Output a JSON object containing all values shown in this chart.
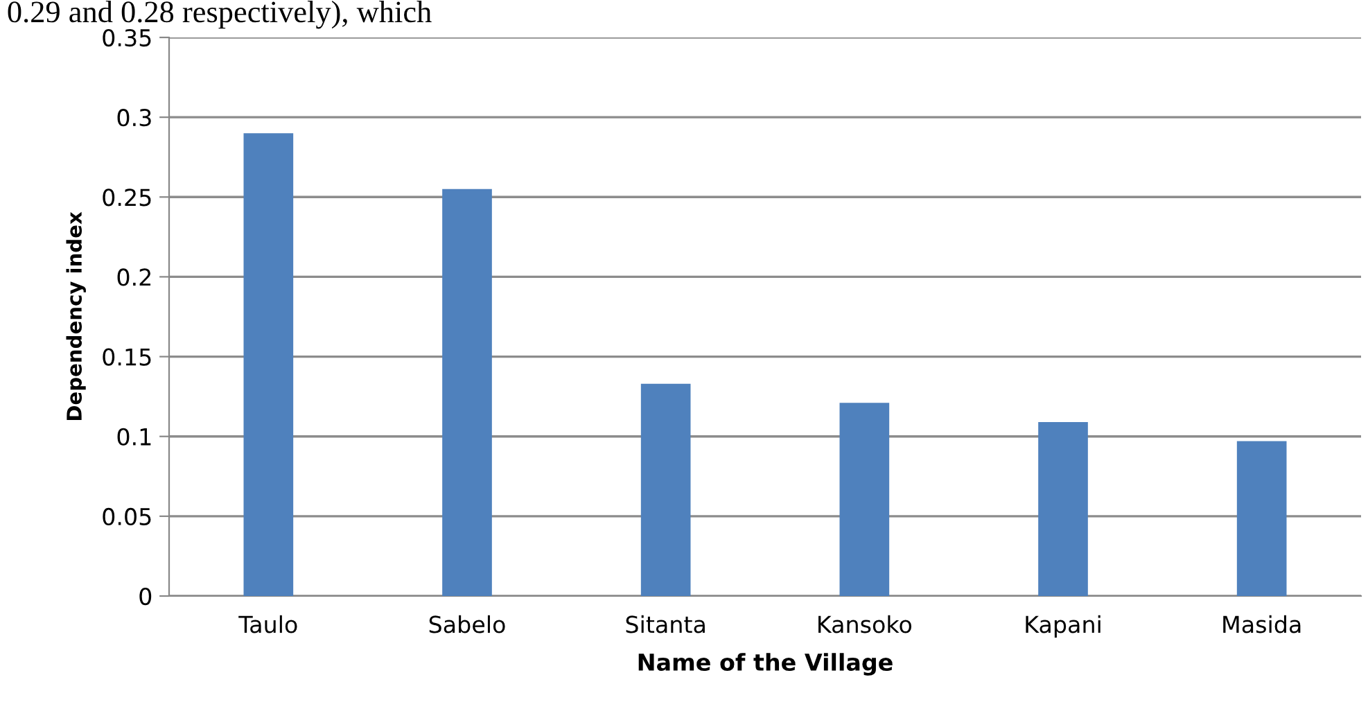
{
  "chart_data": {
    "type": "bar",
    "categories": [
      "Taulo",
      "Sabelo",
      "Sitanta",
      "Kansoko",
      "Kapani",
      "Masida"
    ],
    "values": [
      0.29,
      0.255,
      0.133,
      0.121,
      0.109,
      0.097
    ],
    "color": "#4f81bd",
    "xlabel": "Name of the Village",
    "ylabel": "Dependency index",
    "ylim": [
      0,
      0.35
    ],
    "yticks": [
      0,
      0.05,
      0.1,
      0.15,
      0.2,
      0.25,
      0.3,
      0.35
    ],
    "grid": "y",
    "annotations": [
      "0.29 and 0.28 respectively), which"
    ]
  }
}
